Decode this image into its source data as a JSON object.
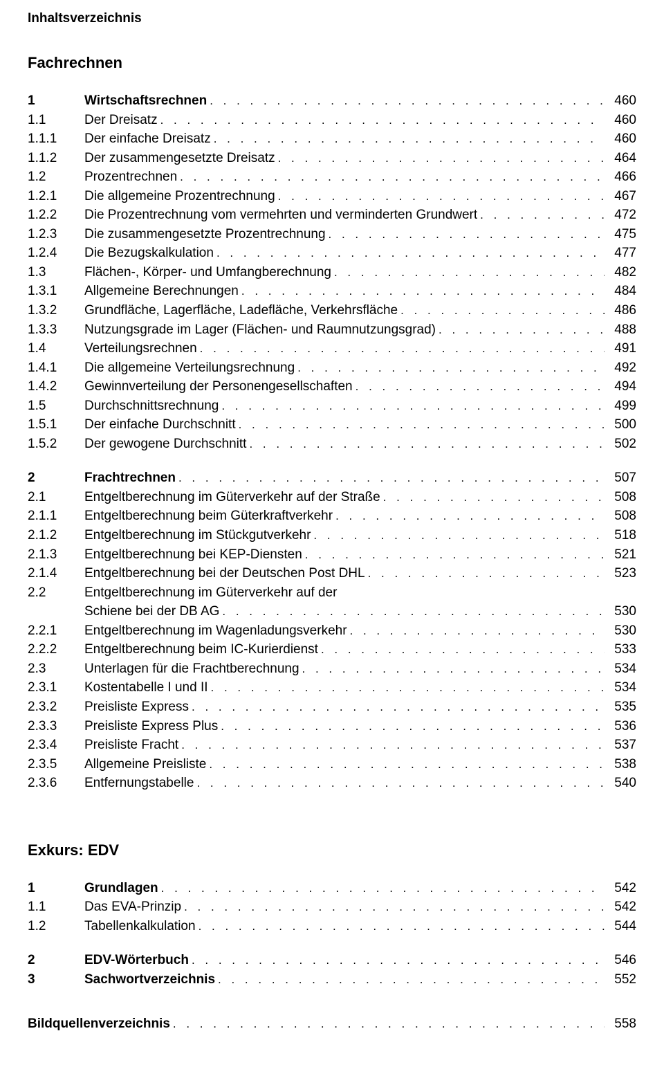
{
  "header": "Inhaltsverzeichnis",
  "sections": [
    {
      "title": "Fachrechnen",
      "blocks": [
        [
          {
            "num": "1",
            "title": "Wirtschaftsrechnen",
            "page": "460",
            "bold": true
          },
          {
            "num": "1.1",
            "title": "Der Dreisatz",
            "page": "460"
          },
          {
            "num": "1.1.1",
            "title": "Der einfache Dreisatz",
            "page": "460"
          },
          {
            "num": "1.1.2",
            "title": "Der zusammengesetzte Dreisatz",
            "page": "464"
          },
          {
            "num": "1.2",
            "title": "Prozentrechnen",
            "page": "466"
          },
          {
            "num": "1.2.1",
            "title": "Die allgemeine Prozentrechnung",
            "page": "467"
          },
          {
            "num": "1.2.2",
            "title": "Die Prozentrechnung vom vermehrten und verminderten Grundwert",
            "page": "472"
          },
          {
            "num": "1.2.3",
            "title": "Die zusammengesetzte Prozentrechnung",
            "page": "475"
          },
          {
            "num": "1.2.4",
            "title": "Die Bezugskalkulation",
            "page": "477"
          },
          {
            "num": "1.3",
            "title": "Flächen-, Körper- und Umfangberechnung",
            "page": "482"
          },
          {
            "num": "1.3.1",
            "title": "Allgemeine Berechnungen",
            "page": "484"
          },
          {
            "num": "1.3.2",
            "title": "Grundfläche, Lagerfläche, Ladefläche, Verkehrsfläche",
            "page": "486"
          },
          {
            "num": "1.3.3",
            "title": "Nutzungsgrade im Lager (Flächen- und Raumnutzungsgrad)",
            "page": "488"
          },
          {
            "num": "1.4",
            "title": "Verteilungsrechnen",
            "page": "491"
          },
          {
            "num": "1.4.1",
            "title": "Die allgemeine Verteilungsrechnung",
            "page": "492"
          },
          {
            "num": "1.4.2",
            "title": "Gewinnverteilung der Personengesellschaften",
            "page": "494"
          },
          {
            "num": "1.5",
            "title": "Durchschnittsrechnung",
            "page": "499"
          },
          {
            "num": "1.5.1",
            "title": "Der einfache Durchschnitt",
            "page": "500"
          },
          {
            "num": "1.5.2",
            "title": "Der gewogene Durchschnitt",
            "page": "502"
          }
        ],
        [
          {
            "num": "2",
            "title": "Frachtrechnen",
            "page": "507",
            "bold": true
          },
          {
            "num": "2.1",
            "title": "Entgeltberechnung im Güterverkehr auf der Straße",
            "page": "508"
          },
          {
            "num": "2.1.1",
            "title": "Entgeltberechnung beim Güterkraftverkehr",
            "page": "508"
          },
          {
            "num": "2.1.2",
            "title": "Entgeltberechnung im Stückgutverkehr",
            "page": "518"
          },
          {
            "num": "2.1.3",
            "title": "Entgeltberechnung bei KEP-Diensten",
            "page": "521"
          },
          {
            "num": "2.1.4",
            "title": "Entgeltberechnung bei der Deutschen Post DHL",
            "page": "523"
          },
          {
            "num": "2.2",
            "title": "Entgeltberechnung im Güterverkehr auf der",
            "cont": "Schiene bei der DB AG",
            "page": "530"
          },
          {
            "num": "2.2.1",
            "title": "Entgeltberechnung im Wagenladungsverkehr",
            "page": "530"
          },
          {
            "num": "2.2.2",
            "title": "Entgeltberechnung beim IC-Kurierdienst",
            "page": "533"
          },
          {
            "num": "2.3",
            "title": "Unterlagen für die Frachtberechnung",
            "page": "534"
          },
          {
            "num": "2.3.1",
            "title": "Kostentabelle I und II",
            "page": "534"
          },
          {
            "num": "2.3.2",
            "title": "Preisliste Express",
            "page": "535"
          },
          {
            "num": "2.3.3",
            "title": "Preisliste Express Plus",
            "page": "536"
          },
          {
            "num": "2.3.4",
            "title": "Preisliste Fracht",
            "page": "537"
          },
          {
            "num": "2.3.5",
            "title": "Allgemeine Preisliste",
            "page": "538"
          },
          {
            "num": "2.3.6",
            "title": "Entfernungstabelle",
            "page": "540"
          }
        ]
      ]
    },
    {
      "title": "Exkurs: EDV",
      "blocks": [
        [
          {
            "num": "1",
            "title": "Grundlagen",
            "page": "542",
            "bold": true
          },
          {
            "num": "1.1",
            "title": "Das EVA-Prinzip",
            "page": "542"
          },
          {
            "num": "1.2",
            "title": "Tabellenkalkulation",
            "page": "544"
          }
        ],
        [
          {
            "num": "2",
            "title": "EDV-Wörterbuch",
            "page": "546",
            "bold": true
          },
          {
            "num": "3",
            "title": "Sachwortverzeichnis",
            "page": "552",
            "bold": true
          }
        ]
      ]
    }
  ],
  "final": {
    "title": "Bildquellenverzeichnis",
    "page": "558"
  },
  "dot_fill": ". . . . . . . . . . . . . . . . . . . . . . . . . . . . . . . . . . . . . . . . . . . . . . . . . . . . . . . . . . . . . . . . . . . . . . . . . . . . . . . . . . . . . . . . . . . . . . . . . . . ."
}
